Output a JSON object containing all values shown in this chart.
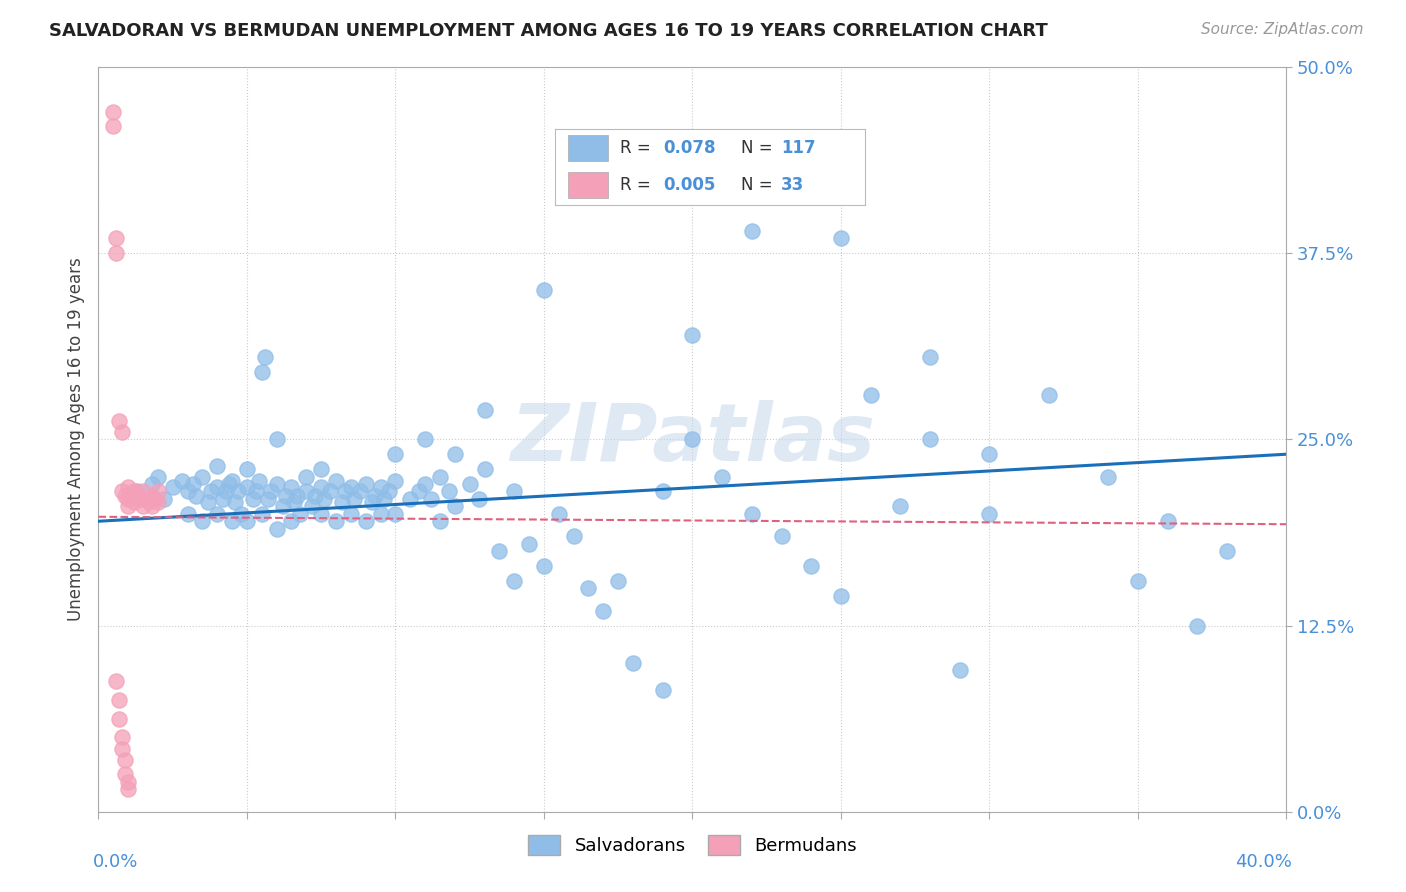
{
  "title": "SALVADORAN VS BERMUDAN UNEMPLOYMENT AMONG AGES 16 TO 19 YEARS CORRELATION CHART",
  "source": "Source: ZipAtlas.com",
  "legend1_R": "0.078",
  "legend1_N": "117",
  "legend2_R": "0.005",
  "legend2_N": "33",
  "salvadoran_color": "#8fbde8",
  "bermudan_color": "#f4a0b8",
  "trend_salvadoran_color": "#1a6fba",
  "trend_bermudan_color": "#e06080",
  "watermark": "ZIPatlas",
  "background_color": "#ffffff",
  "grid_color": "#cccccc",
  "xlim": [
    0.0,
    0.4
  ],
  "ylim": [
    0.0,
    0.5
  ],
  "ytick_vals": [
    0.0,
    0.125,
    0.25,
    0.375,
    0.5
  ],
  "ytick_labels": [
    "0.0%",
    "12.5%",
    "25.0%",
    "37.5%",
    "50.0%"
  ],
  "sal_trend_start_y": 0.195,
  "sal_trend_end_y": 0.24,
  "ber_trend_start_y": 0.198,
  "ber_trend_end_y": 0.193
}
